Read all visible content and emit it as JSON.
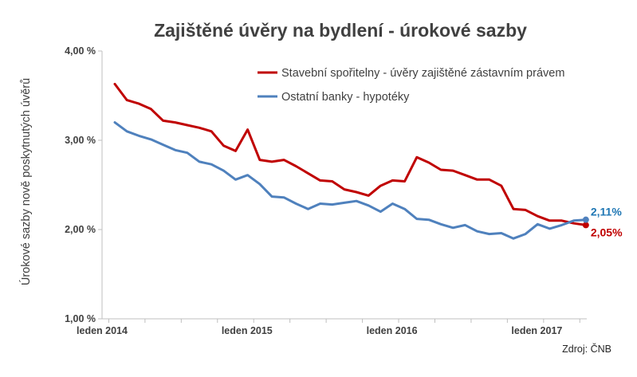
{
  "chart_data": {
    "type": "line",
    "title": "Zajištěné úvěry na bydlení - úrokové sazby",
    "ylabel": "Úrokové sazby nově poskytnutých úvěrů",
    "xlabel": "",
    "ylim": [
      1.0,
      4.0
    ],
    "yticks": [
      1.0,
      2.0,
      3.0,
      4.0
    ],
    "ytick_labels": [
      "1,00 %",
      "2,00 %",
      "3,00 %",
      "4,00 %"
    ],
    "x": [
      "2014-01",
      "2014-02",
      "2014-03",
      "2014-04",
      "2014-05",
      "2014-06",
      "2014-07",
      "2014-08",
      "2014-09",
      "2014-10",
      "2014-11",
      "2014-12",
      "2015-01",
      "2015-02",
      "2015-03",
      "2015-04",
      "2015-05",
      "2015-06",
      "2015-07",
      "2015-08",
      "2015-09",
      "2015-10",
      "2015-11",
      "2015-12",
      "2016-01",
      "2016-02",
      "2016-03",
      "2016-04",
      "2016-05",
      "2016-06",
      "2016-07",
      "2016-08",
      "2016-09",
      "2016-10",
      "2016-11",
      "2016-12",
      "2017-01",
      "2017-02",
      "2017-03",
      "2017-04"
    ],
    "xticks": [
      "2014-01",
      "2015-01",
      "2016-01",
      "2017-01"
    ],
    "xtick_labels": [
      "leden 2014",
      "leden 2015",
      "leden 2016",
      "leden 2017"
    ],
    "grid": false,
    "legend_position": "top-right",
    "series": [
      {
        "name": "Stavební spořitelny - úvěry zajištěné zástavním právem",
        "color": "#c00000",
        "values": [
          3.63,
          3.45,
          3.41,
          3.35,
          3.22,
          3.2,
          3.17,
          3.14,
          3.1,
          2.94,
          2.88,
          3.12,
          2.78,
          2.76,
          2.78,
          2.71,
          2.63,
          2.55,
          2.54,
          2.45,
          2.42,
          2.38,
          2.49,
          2.55,
          2.54,
          2.81,
          2.75,
          2.67,
          2.66,
          2.61,
          2.56,
          2.56,
          2.49,
          2.23,
          2.22,
          2.15,
          2.1,
          2.1,
          2.07,
          2.05
        ],
        "end_label": "2,05%",
        "end_label_color": "#c00000"
      },
      {
        "name": "Ostatní banky - hypotéky",
        "color": "#4f81bd",
        "values": [
          3.2,
          3.1,
          3.05,
          3.01,
          2.95,
          2.89,
          2.86,
          2.76,
          2.73,
          2.66,
          2.56,
          2.61,
          2.51,
          2.37,
          2.36,
          2.29,
          2.23,
          2.29,
          2.28,
          2.3,
          2.32,
          2.27,
          2.2,
          2.29,
          2.23,
          2.12,
          2.11,
          2.06,
          2.02,
          2.05,
          1.98,
          1.95,
          1.96,
          1.9,
          1.95,
          2.06,
          2.01,
          2.05,
          2.1,
          2.11
        ],
        "end_label": "2,11%",
        "end_label_color": "#1f77b4"
      }
    ],
    "source": "Zdroj: ČNB"
  }
}
